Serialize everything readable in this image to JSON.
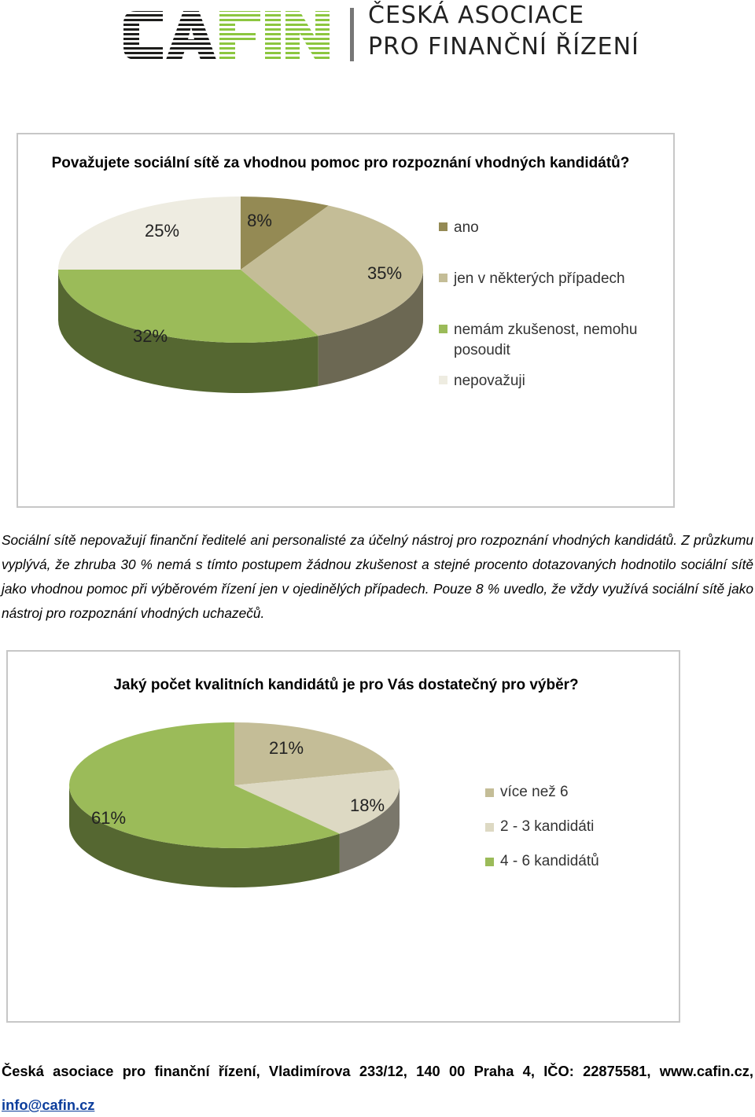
{
  "header": {
    "logo_text": "CAFIN",
    "org_line1": "ČESKÁ ASOCIACE",
    "org_line2": "PRO FINANČNÍ ŘÍZENÍ"
  },
  "chart_data": [
    {
      "type": "pie",
      "title": "Považujete sociální sítě za vhodnou pomoc pro rozpoznání vhodných kandidátů?",
      "labels": [
        "ano",
        "jen v některých případech",
        "nemám zkušenost, nemohu posoudit",
        "nepovažuji"
      ],
      "values": [
        8,
        35,
        32,
        25
      ],
      "value_labels": [
        "8%",
        "35%",
        "32%",
        "25%"
      ],
      "colors": [
        "#948a54",
        "#c4bd97",
        "#9bbb59",
        "#eeece1"
      ],
      "legend_position": "right"
    },
    {
      "type": "pie",
      "title": "Jaký počet kvalitních kandidátů je pro Vás dostatečný pro výběr?",
      "labels": [
        "více než 6",
        "2 - 3 kandidáti",
        "4 - 6 kandidátů"
      ],
      "values": [
        21,
        18,
        61
      ],
      "value_labels": [
        "21%",
        "18%",
        "61%"
      ],
      "colors": [
        "#c4bd97",
        "#ddd9c3",
        "#9bbb59"
      ],
      "legend_position": "right"
    }
  ],
  "paragraph": "Sociální sítě nepovažují finanční ředitelé ani personalisté za účelný nástroj pro rozpoznání vhodných kandidátů. Z průzkumu vyplývá, že zhruba 30 % nemá s tímto postupem žádnou zkušenost a stejné procento dotazovaných hodnotilo sociální sítě jako vhodnou pomoc při výběrovém řízení jen v ojedinělých případech. Pouze 8 % uvedlo, že vždy využívá sociální sítě jako nástroj pro rozpoznání vhodných uchazečů.",
  "footer": {
    "address": "Česká asociace pro finanční řízení, Vladimírova 233/12, 140 00 Praha 4, IČO: 22875581, www.cafin.cz,",
    "email": "info@cafin.cz"
  }
}
